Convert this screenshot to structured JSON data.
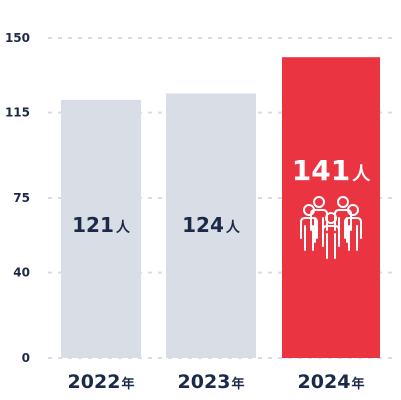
{
  "chart_data": {
    "type": "bar",
    "categories": [
      {
        "year": "2022",
        "suffix": "年"
      },
      {
        "year": "2023",
        "suffix": "年"
      },
      {
        "year": "2024",
        "suffix": "年"
      }
    ],
    "values": [
      121,
      124,
      141
    ],
    "value_labels": [
      {
        "number": "121",
        "unit": "人"
      },
      {
        "number": "124",
        "unit": "人"
      },
      {
        "number": "141",
        "unit": "人"
      }
    ],
    "yticks": [
      0,
      40,
      75,
      115,
      150
    ],
    "ylim": [
      0,
      150
    ],
    "grid": true,
    "highlight_index": 2,
    "highlight_icon": "people-group-icon",
    "colors": {
      "bar": "#d9dde5",
      "highlight": "#eb3442",
      "text": "#1c2a4a",
      "highlight_text": "#ffffff",
      "grid": "#d8dce6"
    }
  }
}
